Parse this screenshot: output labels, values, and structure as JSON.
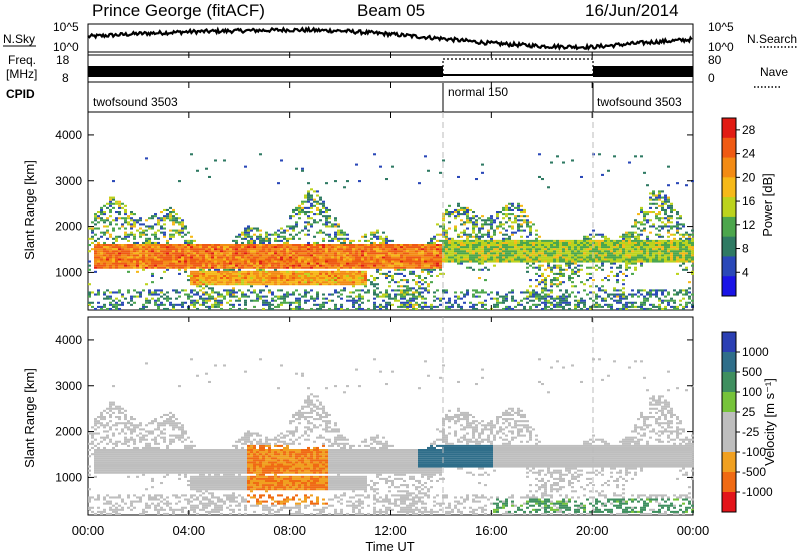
{
  "header": {
    "station": "Prince George (fitACF)",
    "beam": "Beam 05",
    "date": "16/Jun/2014"
  },
  "panels": {
    "nsky": {
      "label": "N.Sky",
      "right_label": "N.Search",
      "ticks_left": [
        "10^5",
        "10^0"
      ],
      "ticks_right": [
        "10^5",
        "10^0"
      ]
    },
    "freq": {
      "label_line1": "Freq.",
      "label_line2": "[MHz]",
      "right_label": "Nave",
      "ticks_left": [
        "18",
        "8"
      ],
      "ticks_right": [
        "80",
        "0"
      ]
    },
    "cpid": {
      "label": "CPID",
      "segments": [
        {
          "name": "twofsound 3503",
          "start": "00:00",
          "end": "14:00"
        },
        {
          "name": "normal 150",
          "start": "14:00",
          "end": "20:00"
        },
        {
          "name": "twofsound 3503",
          "start": "20:00",
          "end": "00:00"
        }
      ]
    }
  },
  "x_axis": {
    "label": "Time UT",
    "ticks": [
      "00:00",
      "04:00",
      "08:00",
      "12:00",
      "16:00",
      "20:00",
      "00:00"
    ]
  },
  "y_axis": {
    "label": "Slant Range [km]",
    "ticks": [
      "1000",
      "2000",
      "3000",
      "4000"
    ]
  },
  "colorbars": {
    "power": {
      "label": "Power [dB]",
      "ticks": [
        "4",
        "8",
        "12",
        "16",
        "20",
        "24",
        "28"
      ],
      "colors": [
        "#1a14e6",
        "#2a48b8",
        "#2f7a63",
        "#4ca64c",
        "#bcd31d",
        "#f6b919",
        "#f38b14",
        "#ef5a13",
        "#e11b13"
      ]
    },
    "velocity": {
      "label": "Velocity [m s⁻¹]",
      "ticks": [
        "1000",
        "500",
        "100",
        "25",
        "-25",
        "-100",
        "-500",
        "-1000"
      ],
      "colors": [
        "#2b3fb3",
        "#2f6e8a",
        "#3f8f5f",
        "#76c33a",
        "#bebebe",
        "#bebebe",
        "#f0a020",
        "#f06a13",
        "#e3141a"
      ]
    }
  },
  "chart_data": [
    {
      "type": "line",
      "title": "N.Sky / N.Search",
      "x_range": [
        "00:00",
        "24:00"
      ],
      "ylim_log10": [
        0,
        5
      ],
      "series": [
        {
          "name": "N.Sky",
          "x_hours": [
            0,
            2,
            4,
            6,
            8,
            10,
            12,
            14,
            16,
            18,
            20,
            22,
            24
          ],
          "values_log10": [
            2.8,
            3.4,
            3.8,
            4.0,
            4.2,
            4.0,
            3.3,
            2.4,
            1.4,
            0.8,
            0.6,
            1.5,
            2.2
          ]
        }
      ]
    },
    {
      "type": "line",
      "title": "Freq. / Nave",
      "x_range": [
        "00:00",
        "24:00"
      ],
      "ylim": [
        8,
        18
      ],
      "series": [
        {
          "name": "Freq. [MHz]",
          "x_hours": [
            0,
            14,
            14,
            20,
            20,
            24
          ],
          "values": [
            13.5,
            13.5,
            17.5,
            17.5,
            13.5,
            13.5
          ]
        }
      ]
    },
    {
      "type": "heatmap",
      "title": "Power [dB]",
      "x_range_hours": [
        0,
        24
      ],
      "ylim_km": [
        180,
        4500
      ],
      "clim": [
        0,
        30
      ],
      "note_bands": [
        {
          "t0": 0.2,
          "t1": 14,
          "r0": 1050,
          "r1": 1600,
          "level": 27
        },
        {
          "t0": 4,
          "t1": 11,
          "r0": 700,
          "r1": 1000,
          "level": 24
        },
        {
          "t0": 14,
          "t1": 24,
          "r0": 1200,
          "r1": 1700,
          "level": 18
        }
      ]
    },
    {
      "type": "heatmap",
      "title": "Velocity [m s⁻¹]",
      "x_range_hours": [
        0,
        24
      ],
      "ylim_km": [
        180,
        4500
      ],
      "clim": [
        -1000,
        1000
      ],
      "note_bands": [
        {
          "t0": 6.3,
          "t1": 9.5,
          "r0": 400,
          "r1": 1700,
          "level": -500
        },
        {
          "t0": 13,
          "t1": 16,
          "r0": 1200,
          "r1": 1700,
          "level": 500
        },
        {
          "t0": 16,
          "t1": 24,
          "r0": 200,
          "r1": 500,
          "level": 100
        }
      ]
    }
  ]
}
